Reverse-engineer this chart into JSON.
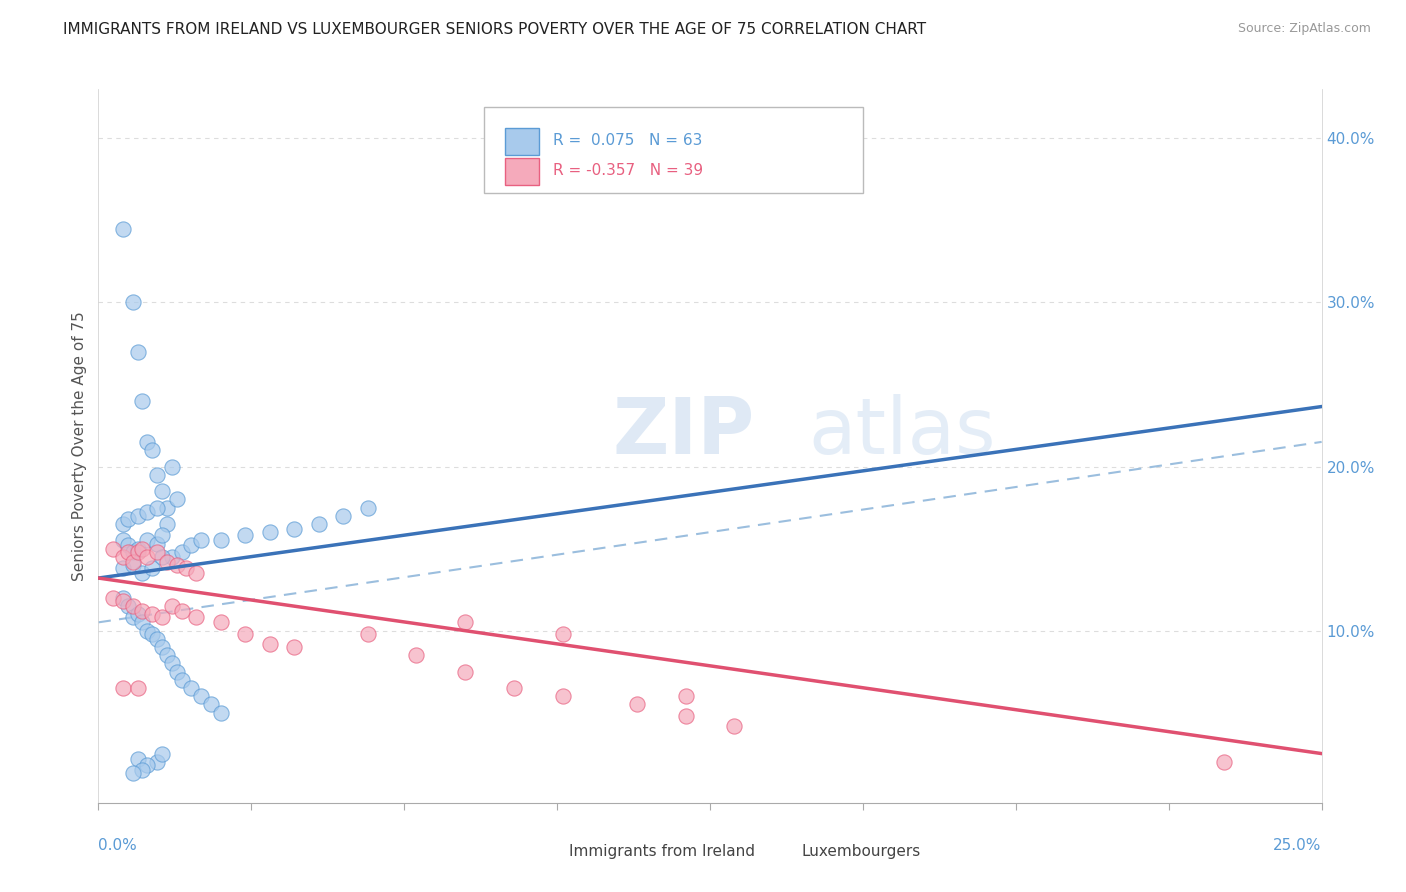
{
  "title": "IMMIGRANTS FROM IRELAND VS LUXEMBOURGER SENIORS POVERTY OVER THE AGE OF 75 CORRELATION CHART",
  "source": "Source: ZipAtlas.com",
  "ylabel": "Seniors Poverty Over the Age of 75",
  "legend_label1": "Immigrants from Ireland",
  "legend_label2": "Luxembourgers",
  "blue_fill": "#A8CAEC",
  "pink_fill": "#F5AABB",
  "blue_edge": "#5B9BD5",
  "pink_edge": "#E86080",
  "trend_blue": "#3A72B8",
  "trend_pink": "#E05070",
  "trend_dashed_color": "#9BBEDE",
  "xlim": [
    0.0,
    0.25
  ],
  "ylim": [
    -0.005,
    0.43
  ],
  "ytick_vals": [
    0.1,
    0.2,
    0.3,
    0.4
  ],
  "ytick_labels": [
    "10.0%",
    "20.0%",
    "30.0%",
    "40.0%"
  ],
  "blue_R": 0.075,
  "blue_N": 63,
  "pink_R": -0.357,
  "pink_N": 39,
  "blue_x": [
    0.005,
    0.007,
    0.008,
    0.009,
    0.01,
    0.011,
    0.012,
    0.013,
    0.014,
    0.015,
    0.005,
    0.006,
    0.008,
    0.01,
    0.012,
    0.014,
    0.016,
    0.005,
    0.006,
    0.007,
    0.008,
    0.01,
    0.012,
    0.013,
    0.015,
    0.017,
    0.019,
    0.021,
    0.005,
    0.007,
    0.009,
    0.011,
    0.013,
    0.025,
    0.03,
    0.035,
    0.04,
    0.045,
    0.05,
    0.055,
    0.005,
    0.006,
    0.007,
    0.008,
    0.009,
    0.01,
    0.011,
    0.012,
    0.013,
    0.014,
    0.015,
    0.016,
    0.017,
    0.019,
    0.021,
    0.023,
    0.025,
    0.008,
    0.012,
    0.01,
    0.009,
    0.007,
    0.013
  ],
  "blue_y": [
    0.345,
    0.3,
    0.27,
    0.24,
    0.215,
    0.21,
    0.195,
    0.185,
    0.175,
    0.2,
    0.165,
    0.168,
    0.17,
    0.172,
    0.175,
    0.165,
    0.18,
    0.155,
    0.152,
    0.148,
    0.15,
    0.155,
    0.153,
    0.158,
    0.145,
    0.148,
    0.152,
    0.155,
    0.138,
    0.14,
    0.135,
    0.138,
    0.145,
    0.155,
    0.158,
    0.16,
    0.162,
    0.165,
    0.17,
    0.175,
    0.12,
    0.115,
    0.108,
    0.11,
    0.105,
    0.1,
    0.098,
    0.095,
    0.09,
    0.085,
    0.08,
    0.075,
    0.07,
    0.065,
    0.06,
    0.055,
    0.05,
    0.022,
    0.02,
    0.018,
    0.015,
    0.013,
    0.025
  ],
  "pink_x": [
    0.003,
    0.005,
    0.006,
    0.007,
    0.008,
    0.009,
    0.01,
    0.012,
    0.014,
    0.016,
    0.018,
    0.02,
    0.003,
    0.005,
    0.007,
    0.009,
    0.011,
    0.013,
    0.015,
    0.017,
    0.02,
    0.025,
    0.03,
    0.035,
    0.04,
    0.055,
    0.065,
    0.075,
    0.085,
    0.095,
    0.11,
    0.12,
    0.13,
    0.075,
    0.095,
    0.12,
    0.005,
    0.008,
    0.23
  ],
  "pink_y": [
    0.15,
    0.145,
    0.148,
    0.142,
    0.148,
    0.15,
    0.145,
    0.148,
    0.142,
    0.14,
    0.138,
    0.135,
    0.12,
    0.118,
    0.115,
    0.112,
    0.11,
    0.108,
    0.115,
    0.112,
    0.108,
    0.105,
    0.098,
    0.092,
    0.09,
    0.098,
    0.085,
    0.075,
    0.065,
    0.06,
    0.055,
    0.048,
    0.042,
    0.105,
    0.098,
    0.06,
    0.065,
    0.065,
    0.02
  ],
  "blue_trend_x0": 0.0,
  "blue_trend_y0": 0.132,
  "blue_trend_x1": 0.055,
  "blue_trend_y1": 0.155,
  "pink_trend_x0": 0.0,
  "pink_trend_y0": 0.132,
  "pink_trend_x1": 0.25,
  "pink_trend_y1": 0.025,
  "dash_trend_x0": 0.0,
  "dash_trend_y0": 0.105,
  "dash_trend_x1": 0.25,
  "dash_trend_y1": 0.215,
  "bg_color": "#FFFFFF",
  "grid_color": "#DDDDDD",
  "watermark": "ZIPatlas",
  "title_fontsize": 11,
  "source_fontsize": 9,
  "axis_label_fontsize": 11,
  "tick_label_fontsize": 11,
  "legend_fontsize": 11
}
